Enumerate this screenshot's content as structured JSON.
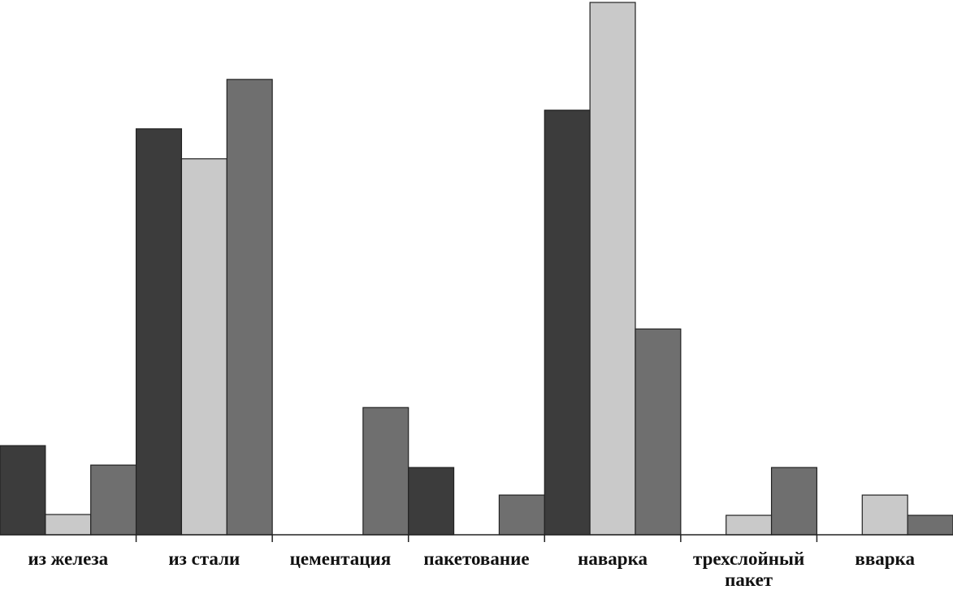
{
  "chart_data": {
    "type": "bar",
    "categories": [
      "из железа",
      "из стали",
      "цементация",
      "пакетование",
      "наварка",
      "трехслойный пакет",
      "вварка"
    ],
    "series": [
      {
        "color": "#3c3c3c",
        "values": [
          110,
          501,
          0,
          83,
          524,
          0,
          0
        ]
      },
      {
        "color": "#c9c9c9",
        "values": [
          25,
          464,
          0,
          0,
          657,
          24,
          49
        ]
      },
      {
        "color": "#6f6f6f",
        "values": [
          86,
          562,
          157,
          49,
          254,
          83,
          24
        ]
      }
    ],
    "ylim": [
      0,
      659
    ]
  }
}
